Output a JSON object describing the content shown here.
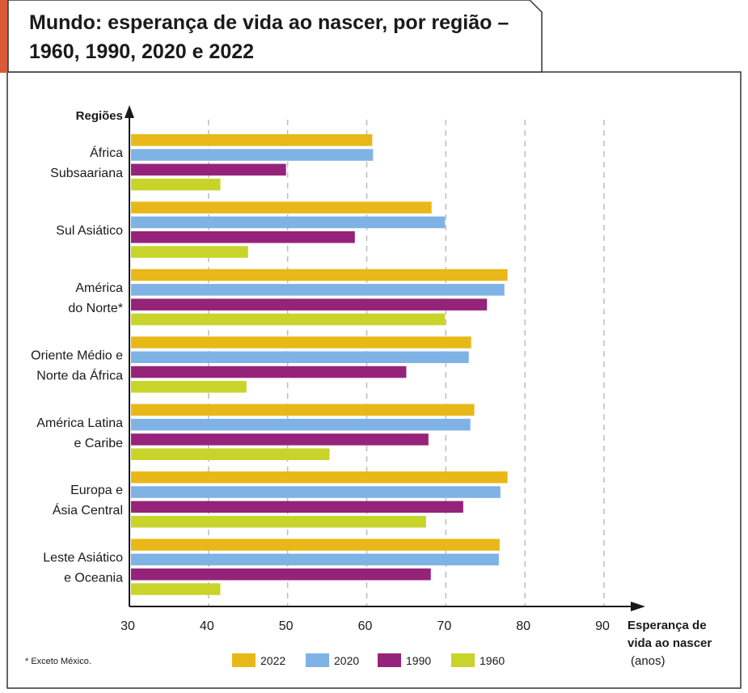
{
  "title_lines": [
    "Mundo: esperança de vida ao nascer, por região –",
    "1960, 1990, 2020 e 2022"
  ],
  "footnote": "* Exceto México.",
  "colors": {
    "accent_tab": "#d95a35",
    "border": "#333333",
    "grid": "#bdbdbd",
    "axis": "#1a1a1a"
  },
  "chart_data": {
    "type": "bar",
    "orientation": "horizontal",
    "title": "Mundo: esperança de vida ao nascer, por região – 1960, 1990, 2020 e 2022",
    "ylabel": "Regiões",
    "xlabel_lines": [
      "Esperança de",
      "vida ao nascer"
    ],
    "xlabel_unit": "(anos)",
    "xlim": [
      30,
      90
    ],
    "xticks": [
      30,
      40,
      50,
      60,
      70,
      80,
      90
    ],
    "grid": true,
    "legend_position": "bottom",
    "categories": [
      [
        "África",
        "Subsaariana"
      ],
      [
        "Sul Asiático"
      ],
      [
        "América",
        "do Norte*"
      ],
      [
        "Oriente Médio e",
        "Norte da África"
      ],
      [
        "América Latina",
        "e Caribe"
      ],
      [
        "Europa e",
        "Ásia Central"
      ],
      [
        "Leste Asiático",
        "e Oceania"
      ]
    ],
    "series": [
      {
        "name": "2022",
        "color": "#e8b818",
        "values": [
          60.7,
          68.2,
          77.8,
          73.2,
          73.6,
          77.8,
          76.8
        ]
      },
      {
        "name": "2020",
        "color": "#7fb2e5",
        "values": [
          60.8,
          69.9,
          77.4,
          72.9,
          73.1,
          76.9,
          76.7
        ]
      },
      {
        "name": "1990",
        "color": "#96237a",
        "values": [
          49.8,
          58.5,
          75.2,
          65.0,
          67.8,
          72.2,
          68.1
        ]
      },
      {
        "name": "1960",
        "color": "#c8d42a",
        "values": [
          41.5,
          45.0,
          69.9,
          44.8,
          55.3,
          67.5,
          41.5
        ]
      }
    ]
  }
}
